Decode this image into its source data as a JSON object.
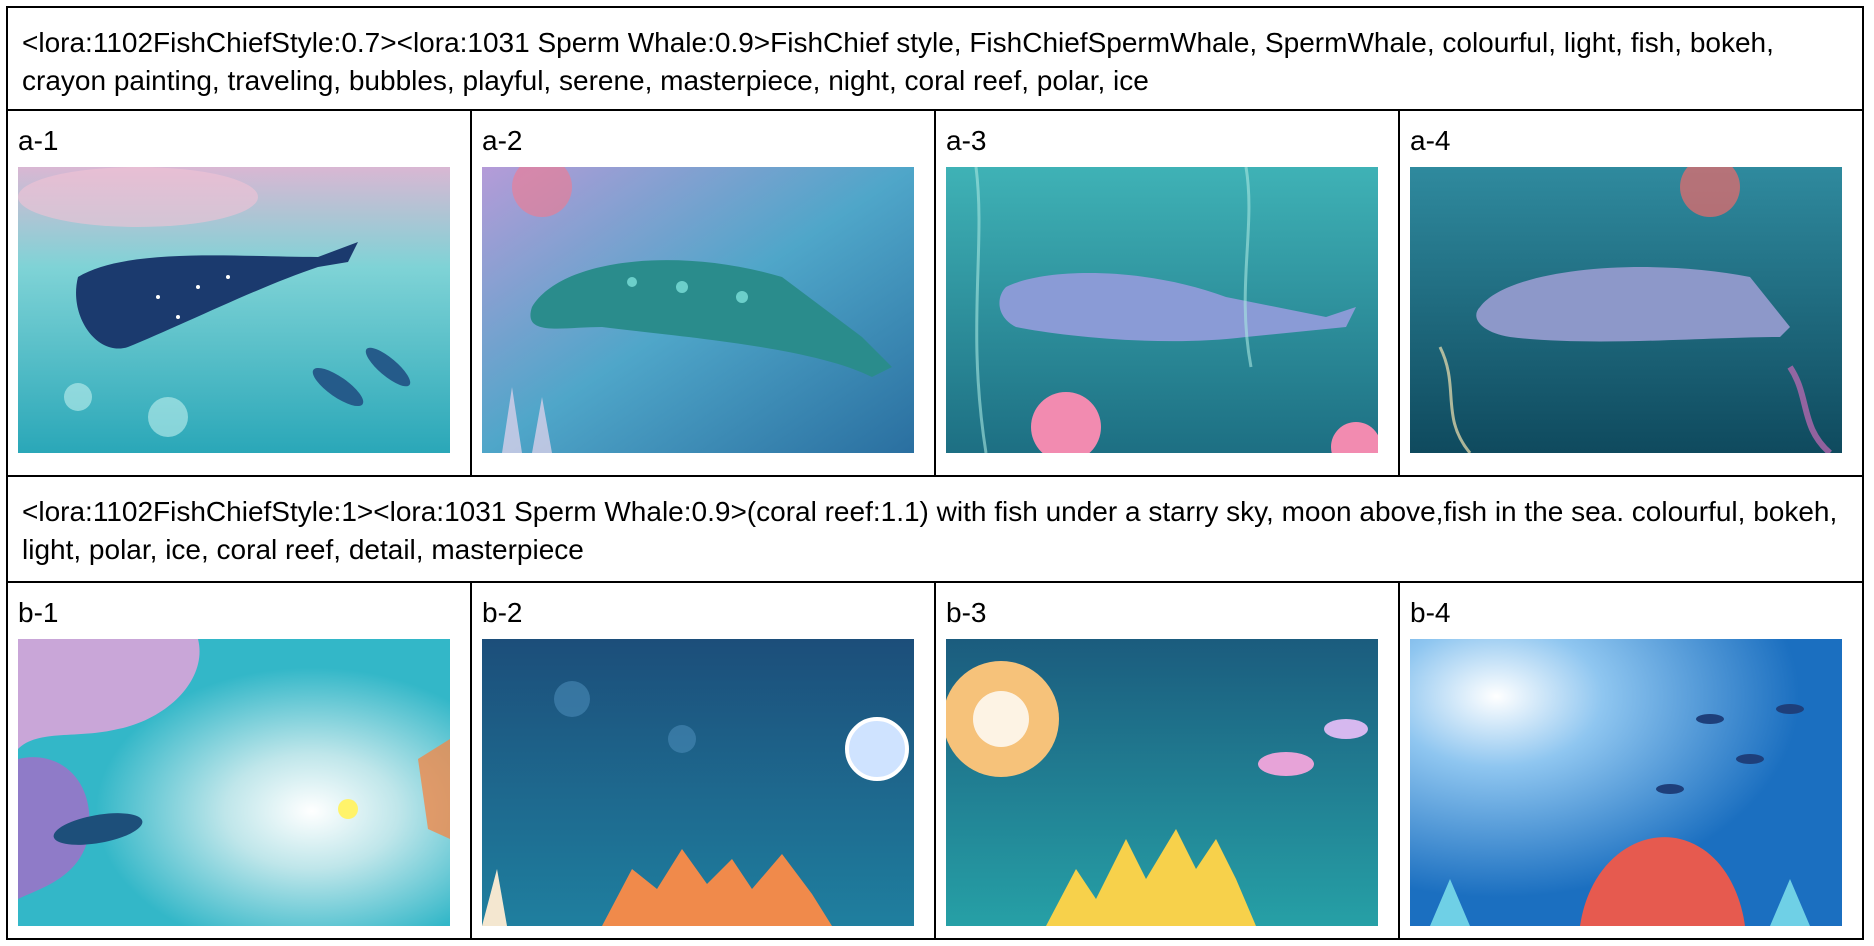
{
  "prompts": {
    "a": "<lora:1102FishChiefStyle:0.7><lora:1031 Sperm Whale:0.9>FishChief style, FishChiefSpermWhale, SpermWhale, colourful, light, fish, bokeh, crayon painting, traveling, bubbles,  playful, serene, masterpiece, night, coral reef, polar, ice",
    "b": "<lora:1102FishChiefStyle:1><lora:1031 Sperm Whale:0.9>(coral reef:1.1) with fish under a starry sky, moon above,fish in the sea. colourful, bokeh, light, polar, ice, coral reef, detail, masterpiece"
  },
  "row_a": [
    {
      "label": "a-1",
      "image": "sperm-whale-painting"
    },
    {
      "label": "a-2",
      "image": "sperm-whale-painting"
    },
    {
      "label": "a-3",
      "image": "sperm-whale-painting"
    },
    {
      "label": "a-4",
      "image": "sperm-whale-painting"
    }
  ],
  "row_b": [
    {
      "label": "b-1",
      "image": "coral-reef-painting"
    },
    {
      "label": "b-2",
      "image": "coral-reef-painting"
    },
    {
      "label": "b-3",
      "image": "coral-reef-painting"
    },
    {
      "label": "b-4",
      "image": "coral-reef-painting"
    }
  ],
  "colors": {
    "border": "#000000",
    "deep_sea": "#0f3f66",
    "teal_sea": "#2aa7b8",
    "coral": "#f08a4b",
    "pink": "#f2a6c8",
    "whale": "#2c4a7a"
  }
}
